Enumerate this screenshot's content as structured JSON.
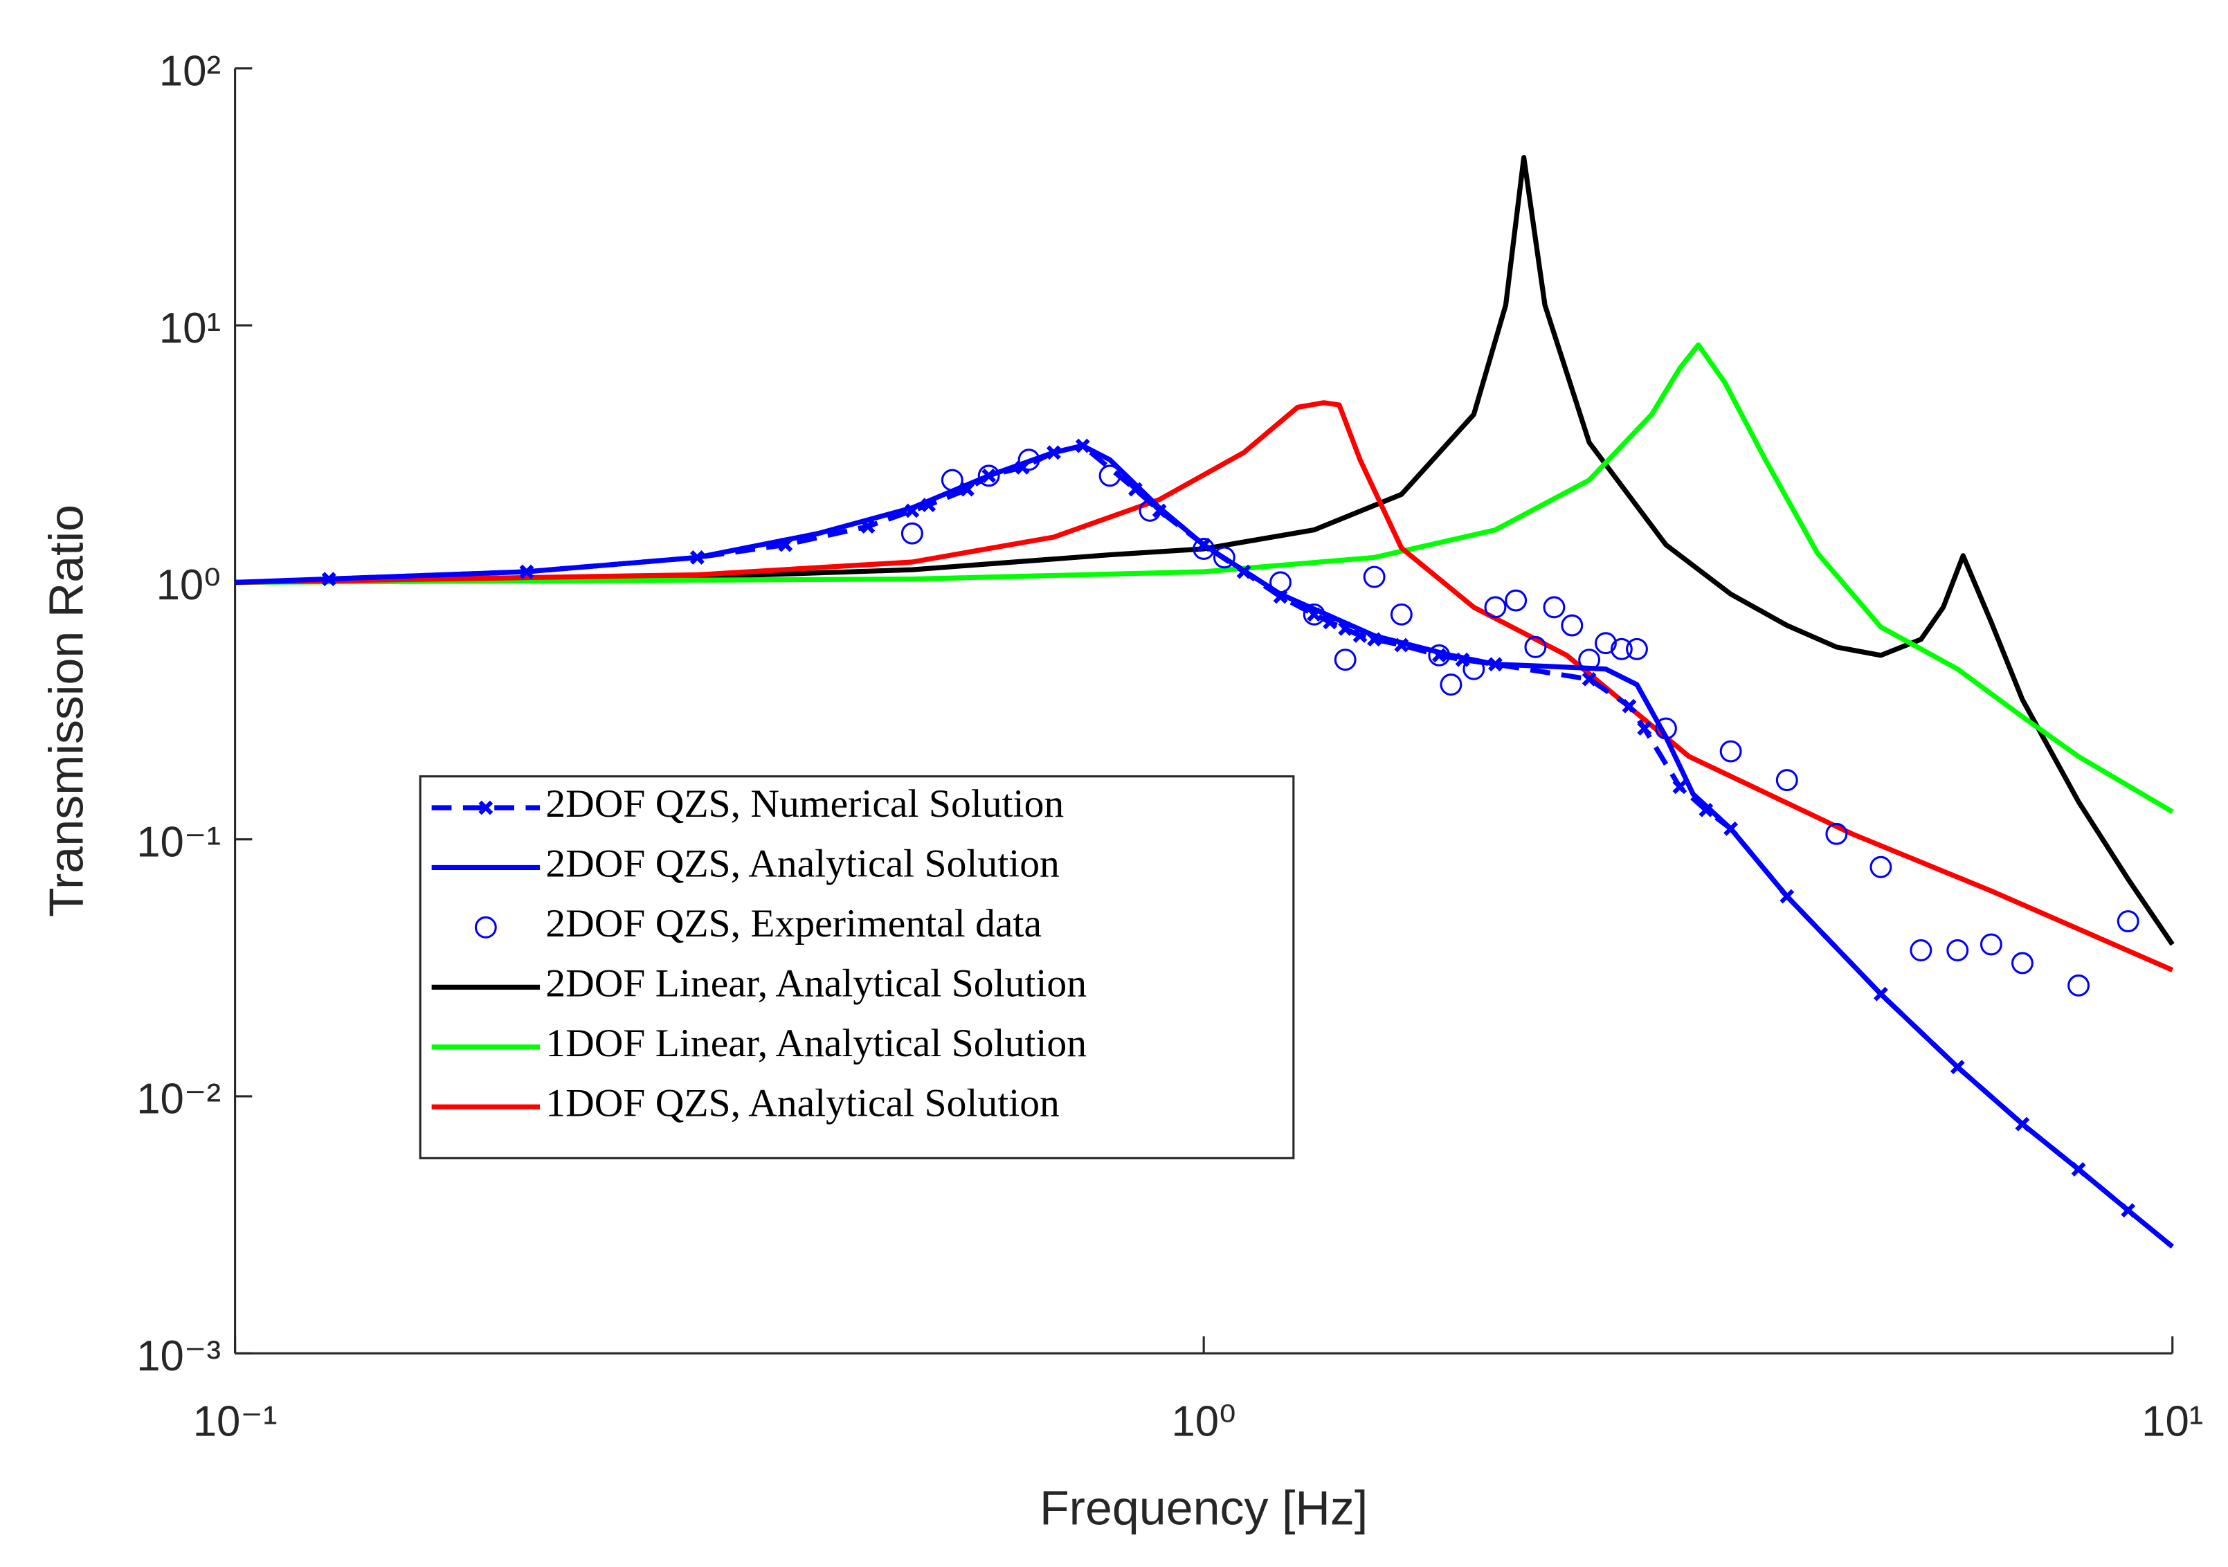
{
  "chart_data": {
    "type": "line",
    "xlabel": "Frequency [Hz]",
    "ylabel": "Transmission Ratio",
    "xscale": "log",
    "yscale": "log",
    "xlim": [
      0.1,
      10
    ],
    "ylim": [
      0.001,
      100
    ],
    "xticks": [
      {
        "value": 0.1,
        "label": "10⁻¹"
      },
      {
        "value": 1,
        "label": "10⁰"
      },
      {
        "value": 10,
        "label": "10¹"
      }
    ],
    "yticks": [
      {
        "value": 0.001,
        "label": "10⁻³"
      },
      {
        "value": 0.01,
        "label": "10⁻²"
      },
      {
        "value": 0.1,
        "label": "10⁻¹"
      },
      {
        "value": 1,
        "label": "10⁰"
      },
      {
        "value": 10,
        "label": "10¹"
      },
      {
        "value": 100,
        "label": "10²"
      }
    ],
    "legend_loc": "lower left",
    "series": [
      {
        "name": "2DOF QZS, Numerical Solution",
        "color": "#0000ff",
        "style": "dashed-markers",
        "x": [
          0.125,
          0.2,
          0.3,
          0.37,
          0.45,
          0.5,
          0.52,
          0.57,
          0.6,
          0.65,
          0.7,
          0.75,
          0.85,
          0.9,
          1.0,
          1.1,
          1.2,
          1.3,
          1.35,
          1.4,
          1.45,
          1.5,
          1.6,
          1.75,
          1.85,
          2.0,
          2.5,
          2.75,
          2.85,
          3.1,
          3.3,
          3.5,
          4,
          5,
          6,
          7,
          8,
          9
        ],
        "values": [
          1.03,
          1.1,
          1.25,
          1.4,
          1.65,
          1.9,
          2.0,
          2.3,
          2.6,
          2.8,
          3.2,
          3.4,
          2.3,
          1.9,
          1.4,
          1.1,
          0.88,
          0.75,
          0.7,
          0.66,
          0.62,
          0.6,
          0.57,
          0.52,
          0.5,
          0.48,
          0.42,
          0.33,
          0.27,
          0.16,
          0.13,
          0.11,
          0.06,
          0.025,
          0.013,
          0.0078,
          0.0052,
          0.0036
        ]
      },
      {
        "name": "2DOF QZS, Analytical Solution",
        "color": "#0000ff",
        "style": "line",
        "x": [
          0.1,
          0.2,
          0.3,
          0.4,
          0.5,
          0.6,
          0.7,
          0.75,
          0.8,
          0.9,
          1.0,
          1.2,
          1.5,
          1.8,
          2.0,
          2.3,
          2.6,
          2.8,
          3.0,
          3.2,
          3.5,
          4,
          5,
          6,
          7,
          8,
          9,
          10
        ],
        "values": [
          1.0,
          1.1,
          1.25,
          1.55,
          1.95,
          2.6,
          3.2,
          3.4,
          3.0,
          1.95,
          1.4,
          0.9,
          0.62,
          0.52,
          0.48,
          0.47,
          0.46,
          0.4,
          0.25,
          0.15,
          0.11,
          0.06,
          0.025,
          0.013,
          0.0078,
          0.0052,
          0.0036,
          0.0026
        ]
      },
      {
        "name": "2DOF QZS, Experimental data",
        "color": "#0000ff",
        "style": "markers",
        "x": [
          0.5,
          0.55,
          0.6,
          0.66,
          0.8,
          0.88,
          1.0,
          1.05,
          1.2,
          1.3,
          1.4,
          1.5,
          1.6,
          1.75,
          1.8,
          1.9,
          2.0,
          2.1,
          2.2,
          2.3,
          2.4,
          2.5,
          2.6,
          2.7,
          2.8,
          3.0,
          3.5,
          4.0,
          4.5,
          5.0,
          5.5,
          6.0,
          6.5,
          7.0,
          8,
          9
        ],
        "values": [
          1.55,
          2.5,
          2.6,
          3.0,
          2.6,
          1.9,
          1.35,
          1.25,
          1.0,
          0.75,
          0.5,
          1.05,
          0.75,
          0.52,
          0.4,
          0.46,
          0.8,
          0.85,
          0.56,
          0.8,
          0.68,
          0.5,
          0.58,
          0.55,
          0.55,
          0.27,
          0.22,
          0.17,
          0.105,
          0.078,
          0.037,
          0.037,
          0.039,
          0.033,
          0.027,
          0.048
        ]
      },
      {
        "name": "2DOF Linear, Analytical Solution",
        "color": "#000000",
        "style": "line",
        "x": [
          0.1,
          0.3,
          0.5,
          0.8,
          1.0,
          1.3,
          1.6,
          1.9,
          2.05,
          2.14,
          2.25,
          2.5,
          3.0,
          3.5,
          4.0,
          4.5,
          5.0,
          5.5,
          5.8,
          6.08,
          6.5,
          7,
          8,
          9,
          10
        ],
        "values": [
          1.0,
          1.05,
          1.12,
          1.28,
          1.35,
          1.6,
          2.2,
          4.5,
          12,
          45,
          12,
          3.5,
          1.4,
          0.9,
          0.68,
          0.56,
          0.52,
          0.6,
          0.8,
          1.27,
          0.7,
          0.35,
          0.14,
          0.07,
          0.039
        ]
      },
      {
        "name": "1DOF Linear, Analytical Solution",
        "color": "#00ff00",
        "style": "line",
        "x": [
          0.1,
          0.5,
          1,
          1.5,
          2,
          2.5,
          2.9,
          3.1,
          3.24,
          3.45,
          3.8,
          4.3,
          5,
          6,
          7,
          8,
          10
        ],
        "values": [
          1.0,
          1.03,
          1.1,
          1.25,
          1.6,
          2.5,
          4.5,
          6.8,
          8.4,
          6,
          3,
          1.3,
          0.67,
          0.46,
          0.3,
          0.21,
          0.128
        ]
      },
      {
        "name": "1DOF QZS, Analytical Solution",
        "color": "#ff0000",
        "style": "line",
        "x": [
          0.1,
          0.3,
          0.5,
          0.7,
          0.9,
          1.1,
          1.25,
          1.33,
          1.38,
          1.45,
          1.6,
          1.9,
          2.37,
          3.17,
          4.67,
          6.5,
          10
        ],
        "values": [
          1.0,
          1.07,
          1.2,
          1.5,
          2.1,
          3.2,
          4.8,
          5.0,
          4.9,
          3.0,
          1.36,
          0.8,
          0.52,
          0.21,
          0.105,
          0.063,
          0.031
        ]
      }
    ]
  }
}
